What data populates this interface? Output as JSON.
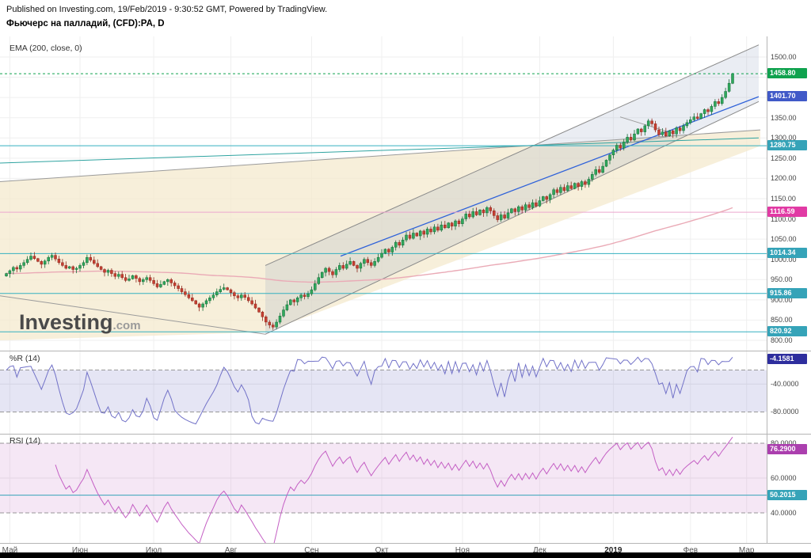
{
  "header": {
    "published": "Published on Investing.com, 19/Feb/2019 - 9:30:52 GMT, Powered by TradingView.",
    "title": "Фьючерс на палладий, (CFD):PA, D"
  },
  "main": {
    "ema_label": "EMA (200, close, 0)",
    "watermark_brand": "Investing",
    "watermark_suffix": ".com"
  },
  "panels": {
    "wr": {
      "label": "%R (14)",
      "value": "-4.1581",
      "badge_color": "#2e2e9e",
      "levels": [
        {
          "label": "-40.0000",
          "value": -40
        },
        {
          "label": "-80.0000",
          "value": -80
        }
      ]
    },
    "rsi": {
      "label": "RSI (14)",
      "value": "76.2900",
      "mid_value": "50.2015",
      "badge_color": "#ab3fae",
      "mid_badge_color": "#35a3b8",
      "levels": [
        {
          "label": "80.0000",
          "value": 80
        },
        {
          "label": "60.0000",
          "value": 60
        },
        {
          "label": "40.0000",
          "value": 40
        }
      ]
    }
  },
  "chart_data": {
    "type": "candlestick",
    "title": "Фьючерс на палладий, (CFD):PA, D",
    "timeframe": "D",
    "ylim": [
      800,
      1500
    ],
    "last_price": 1458.8,
    "style": {
      "up": {
        "fill": "#2fa85c",
        "stroke": "#166b38"
      },
      "down": {
        "fill": "#c63f31",
        "stroke": "#8e2a20"
      }
    },
    "x_axis": {
      "months": [
        {
          "label": "Май",
          "index": 1
        },
        {
          "label": "Июн",
          "index": 21
        },
        {
          "label": "Июл",
          "index": 42
        },
        {
          "label": "Авг",
          "index": 64
        },
        {
          "label": "Сен",
          "index": 87
        },
        {
          "label": "Окт",
          "index": 107
        },
        {
          "label": "Ноя",
          "index": 130
        },
        {
          "label": "Дек",
          "index": 152
        },
        {
          "label": "2019",
          "index": 173,
          "bold": true
        },
        {
          "label": "Фев",
          "index": 195
        },
        {
          "label": "Мар",
          "index": 211
        }
      ]
    },
    "y_axis": {
      "ticks": [
        {
          "label": "1500.00",
          "value": 1500
        },
        {
          "label": "1350.00",
          "value": 1350
        },
        {
          "label": "1300.00",
          "value": 1300
        },
        {
          "label": "1250.00",
          "value": 1250
        },
        {
          "label": "1200.00",
          "value": 1200
        },
        {
          "label": "1150.00",
          "value": 1150
        },
        {
          "label": "1100.00",
          "value": 1100
        },
        {
          "label": "1050.00",
          "value": 1050
        },
        {
          "label": "1000.00",
          "value": 1000
        },
        {
          "label": "950.00",
          "value": 950
        },
        {
          "label": "900.00",
          "value": 900
        },
        {
          "label": "850.00",
          "value": 850
        },
        {
          "label": "800.00",
          "value": 800
        }
      ]
    },
    "badges": [
      {
        "label": "1458.80",
        "price": 1458.8,
        "color": "#0fa24e"
      },
      {
        "label": "1401.70",
        "price": 1401.7,
        "color": "#4059c8"
      },
      {
        "label": "1280.75",
        "price": 1280.75,
        "color": "#35a3b8"
      },
      {
        "label": "1116.59",
        "price": 1116.59,
        "color": "#e13aa4"
      },
      {
        "label": "1014.34",
        "price": 1014.34,
        "color": "#35a3b8"
      },
      {
        "label": "915.86",
        "price": 915.86,
        "color": "#35a3b8"
      },
      {
        "label": "820.92",
        "price": 820.92,
        "color": "#35a3b8"
      }
    ],
    "closes": [
      965,
      972,
      980,
      976,
      985,
      992,
      1000,
      1008,
      1002,
      995,
      988,
      996,
      1005,
      1010,
      1001,
      992,
      985,
      978,
      982,
      975,
      978,
      985,
      992,
      1005,
      998,
      990,
      982,
      975,
      968,
      973,
      965,
      958,
      963,
      955,
      948,
      952,
      960,
      953,
      945,
      950,
      955,
      948,
      940,
      932,
      938,
      945,
      950,
      942,
      935,
      928,
      920,
      913,
      905,
      898,
      890,
      882,
      890,
      898,
      905,
      912,
      920,
      926,
      930,
      925,
      918,
      910,
      905,
      912,
      906,
      898,
      890,
      880,
      870,
      858,
      845,
      838,
      833,
      845,
      860,
      875,
      888,
      900,
      895,
      905,
      912,
      908,
      915,
      925,
      940,
      955,
      968,
      978,
      970,
      962,
      975,
      985,
      978,
      988,
      995,
      985,
      978,
      990,
      1000,
      992,
      985,
      995,
      1005,
      1015,
      1025,
      1018,
      1030,
      1042,
      1035,
      1048,
      1060,
      1052,
      1065,
      1058,
      1070,
      1062,
      1075,
      1068,
      1080,
      1072,
      1085,
      1078,
      1090,
      1082,
      1095,
      1088,
      1100,
      1112,
      1105,
      1118,
      1110,
      1122,
      1115,
      1128,
      1120,
      1108,
      1098,
      1110,
      1102,
      1115,
      1125,
      1118,
      1130,
      1122,
      1135,
      1128,
      1140,
      1132,
      1145,
      1155,
      1148,
      1160,
      1172,
      1165,
      1178,
      1170,
      1182,
      1175,
      1188,
      1180,
      1192,
      1185,
      1198,
      1210,
      1222,
      1215,
      1230,
      1245,
      1258,
      1270,
      1282,
      1275,
      1290,
      1302,
      1295,
      1310,
      1322,
      1315,
      1330,
      1342,
      1335,
      1320,
      1308,
      1315,
      1305,
      1318,
      1310,
      1325,
      1318,
      1330,
      1338,
      1345,
      1352,
      1348,
      1360,
      1370,
      1365,
      1378,
      1390,
      1385,
      1400,
      1415,
      1435,
      1458.8
    ],
    "overlays": {
      "beige_fill": "rgba(244,233,205,0.75)",
      "beige_polygon": [
        [
          0,
          1192
        ],
        [
          960,
          1320
        ],
        [
          960,
          1280
        ],
        [
          335,
          820
        ],
        [
          0,
          800
        ]
      ],
      "channel": {
        "x1": 335,
        "low1": 815,
        "up1": 985,
        "x2": 958,
        "low2": 1390,
        "up2": 1530,
        "color": "#8a8a8a",
        "fill": "rgba(140,155,190,0.18)"
      },
      "lines": [
        {
          "x1": 0,
          "p1": 1192,
          "x2": 960,
          "p2": 1320,
          "color": "#9b9b9b"
        },
        {
          "x1": 0,
          "p1": 910,
          "x2": 335,
          "p2": 815,
          "color": "#9b9b9b"
        },
        {
          "x1": 0,
          "p1": 1238,
          "x2": 958,
          "p2": 1300,
          "color": "#2ea3a0"
        },
        {
          "x1": 783,
          "p1": 1352,
          "x2": 852,
          "p2": 1310,
          "color": "#9b9b9b"
        },
        {
          "x1": 783,
          "p1": 1285,
          "x2": 852,
          "p2": 1306,
          "color": "#9b9b9b"
        },
        {
          "x1": 430,
          "p1": 1008,
          "x2": 958,
          "p2": 1402,
          "color": "#2f62d9",
          "w": 1.3
        }
      ],
      "hlines": [
        {
          "price": 1280.75,
          "color": "#35b0c0"
        },
        {
          "price": 1116.59,
          "color": "#eba6cf"
        },
        {
          "price": 1014.34,
          "color": "#35b0c0"
        },
        {
          "price": 915.86,
          "color": "#35b0c0"
        },
        {
          "price": 820.92,
          "color": "#35b0c0"
        },
        {
          "price": 1458.8,
          "color": "#0fa24e",
          "top": true
        }
      ],
      "ema_period": 200
    },
    "indicators": {
      "wr": {
        "period": 14,
        "current": -4.1581,
        "band": [
          -20,
          -80
        ]
      },
      "rsi": {
        "period": 14,
        "current": 76.29,
        "mid": 50.2015,
        "band": [
          40,
          80
        ]
      }
    }
  }
}
